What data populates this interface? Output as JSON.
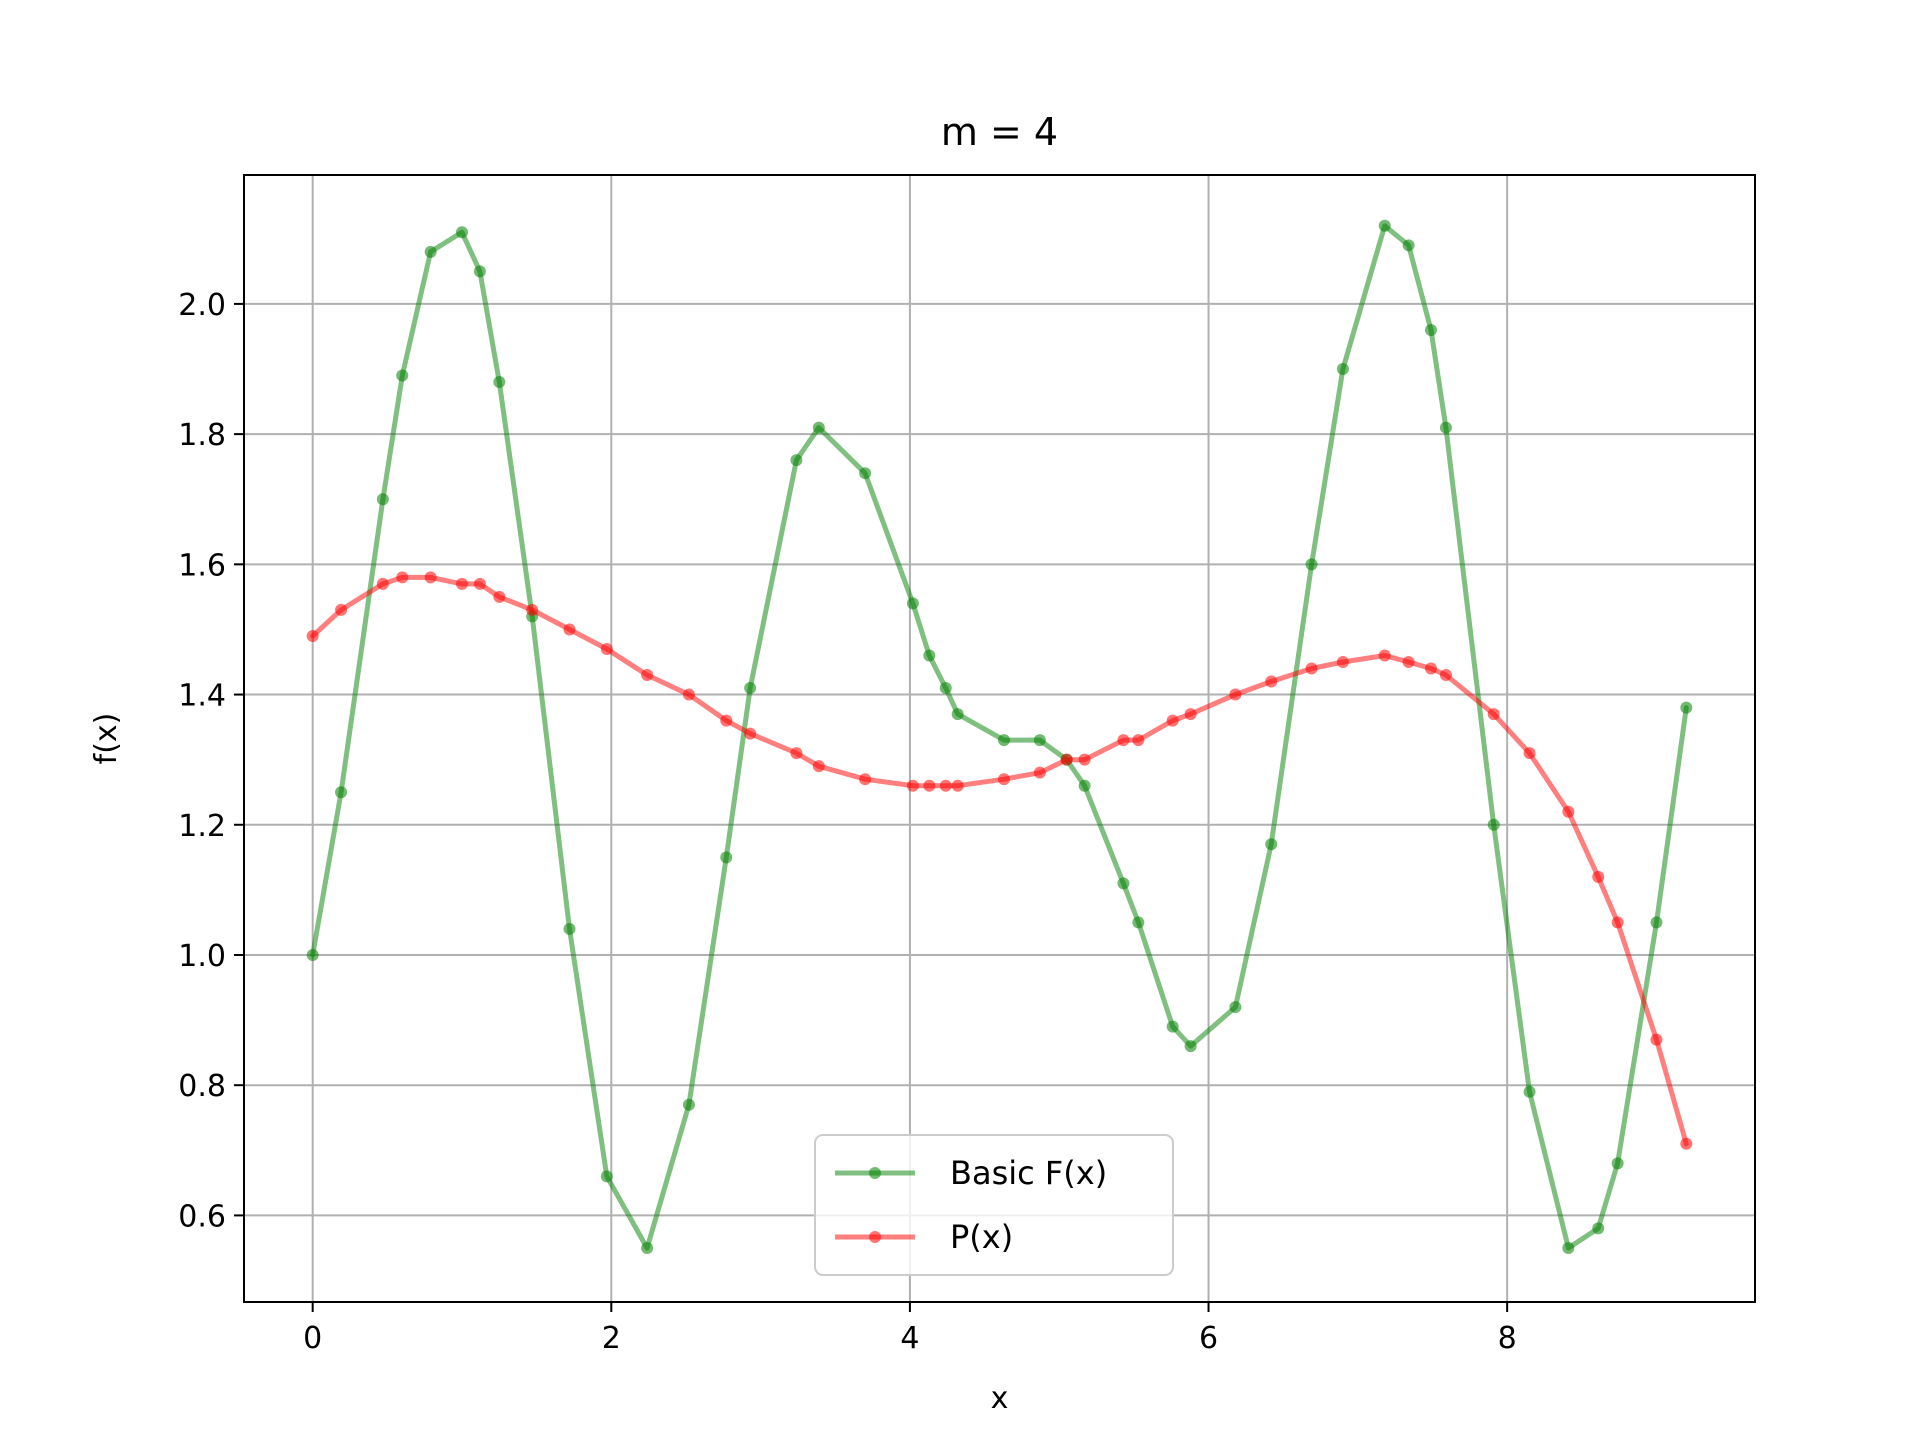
{
  "chart_data": {
    "type": "line",
    "title": "m = 4",
    "xlabel": "x",
    "ylabel": "f(x)",
    "xlim": [
      -0.46,
      9.66
    ],
    "ylim": [
      0.467,
      2.198
    ],
    "xticks": [
      0,
      2,
      4,
      6,
      8
    ],
    "yticks": [
      0.6,
      0.8,
      1.0,
      1.2,
      1.4,
      1.6,
      1.8,
      2.0
    ],
    "xtick_labels": [
      "0",
      "2",
      "4",
      "6",
      "8"
    ],
    "ytick_labels": [
      "0.6",
      "0.8",
      "1.0",
      "1.2",
      "1.4",
      "1.6",
      "1.8",
      "2.0"
    ],
    "grid": true,
    "legend_position": "lower center",
    "series": [
      {
        "name": "Basic F(x)",
        "color": "#008000",
        "x": [
          0,
          0.19,
          0.47,
          0.6,
          0.79,
          1.0,
          1.12,
          1.25,
          1.47,
          1.72,
          1.97,
          2.24,
          2.52,
          2.77,
          2.93,
          3.24,
          3.39,
          3.7,
          4.02,
          4.13,
          4.24,
          4.32,
          4.63,
          4.87,
          5.05,
          5.17,
          5.43,
          5.53,
          5.76,
          5.88,
          6.18,
          6.42,
          6.69,
          6.9,
          7.18,
          7.34,
          7.49,
          7.59,
          7.91,
          8.15,
          8.41,
          8.61,
          8.74,
          9.0,
          9.2
        ],
        "y": [
          1.0,
          1.25,
          1.7,
          1.89,
          2.08,
          2.11,
          2.05,
          1.88,
          1.52,
          1.04,
          0.66,
          0.55,
          0.77,
          1.15,
          1.41,
          1.76,
          1.81,
          1.74,
          1.54,
          1.46,
          1.41,
          1.37,
          1.33,
          1.33,
          1.3,
          1.26,
          1.11,
          1.05,
          0.89,
          0.86,
          0.92,
          1.17,
          1.6,
          1.9,
          2.12,
          2.09,
          1.96,
          1.81,
          1.2,
          0.79,
          0.55,
          0.58,
          0.68,
          1.05,
          1.38
        ]
      },
      {
        "name": "P(x)",
        "color": "#ff0000",
        "x": [
          0,
          0.19,
          0.47,
          0.6,
          0.79,
          1.0,
          1.12,
          1.25,
          1.47,
          1.72,
          1.97,
          2.24,
          2.52,
          2.77,
          2.93,
          3.24,
          3.39,
          3.7,
          4.02,
          4.13,
          4.24,
          4.32,
          4.63,
          4.87,
          5.05,
          5.17,
          5.43,
          5.53,
          5.76,
          5.88,
          6.18,
          6.42,
          6.69,
          6.9,
          7.18,
          7.34,
          7.49,
          7.59,
          7.91,
          8.15,
          8.41,
          8.61,
          8.74,
          9.0,
          9.2
        ],
        "y": [
          1.49,
          1.53,
          1.57,
          1.58,
          1.58,
          1.57,
          1.57,
          1.55,
          1.53,
          1.5,
          1.47,
          1.43,
          1.4,
          1.36,
          1.34,
          1.31,
          1.29,
          1.27,
          1.26,
          1.26,
          1.26,
          1.26,
          1.27,
          1.28,
          1.3,
          1.3,
          1.33,
          1.33,
          1.36,
          1.37,
          1.4,
          1.42,
          1.44,
          1.45,
          1.46,
          1.45,
          1.44,
          1.43,
          1.37,
          1.31,
          1.22,
          1.12,
          1.05,
          0.87,
          0.71
        ]
      }
    ]
  }
}
